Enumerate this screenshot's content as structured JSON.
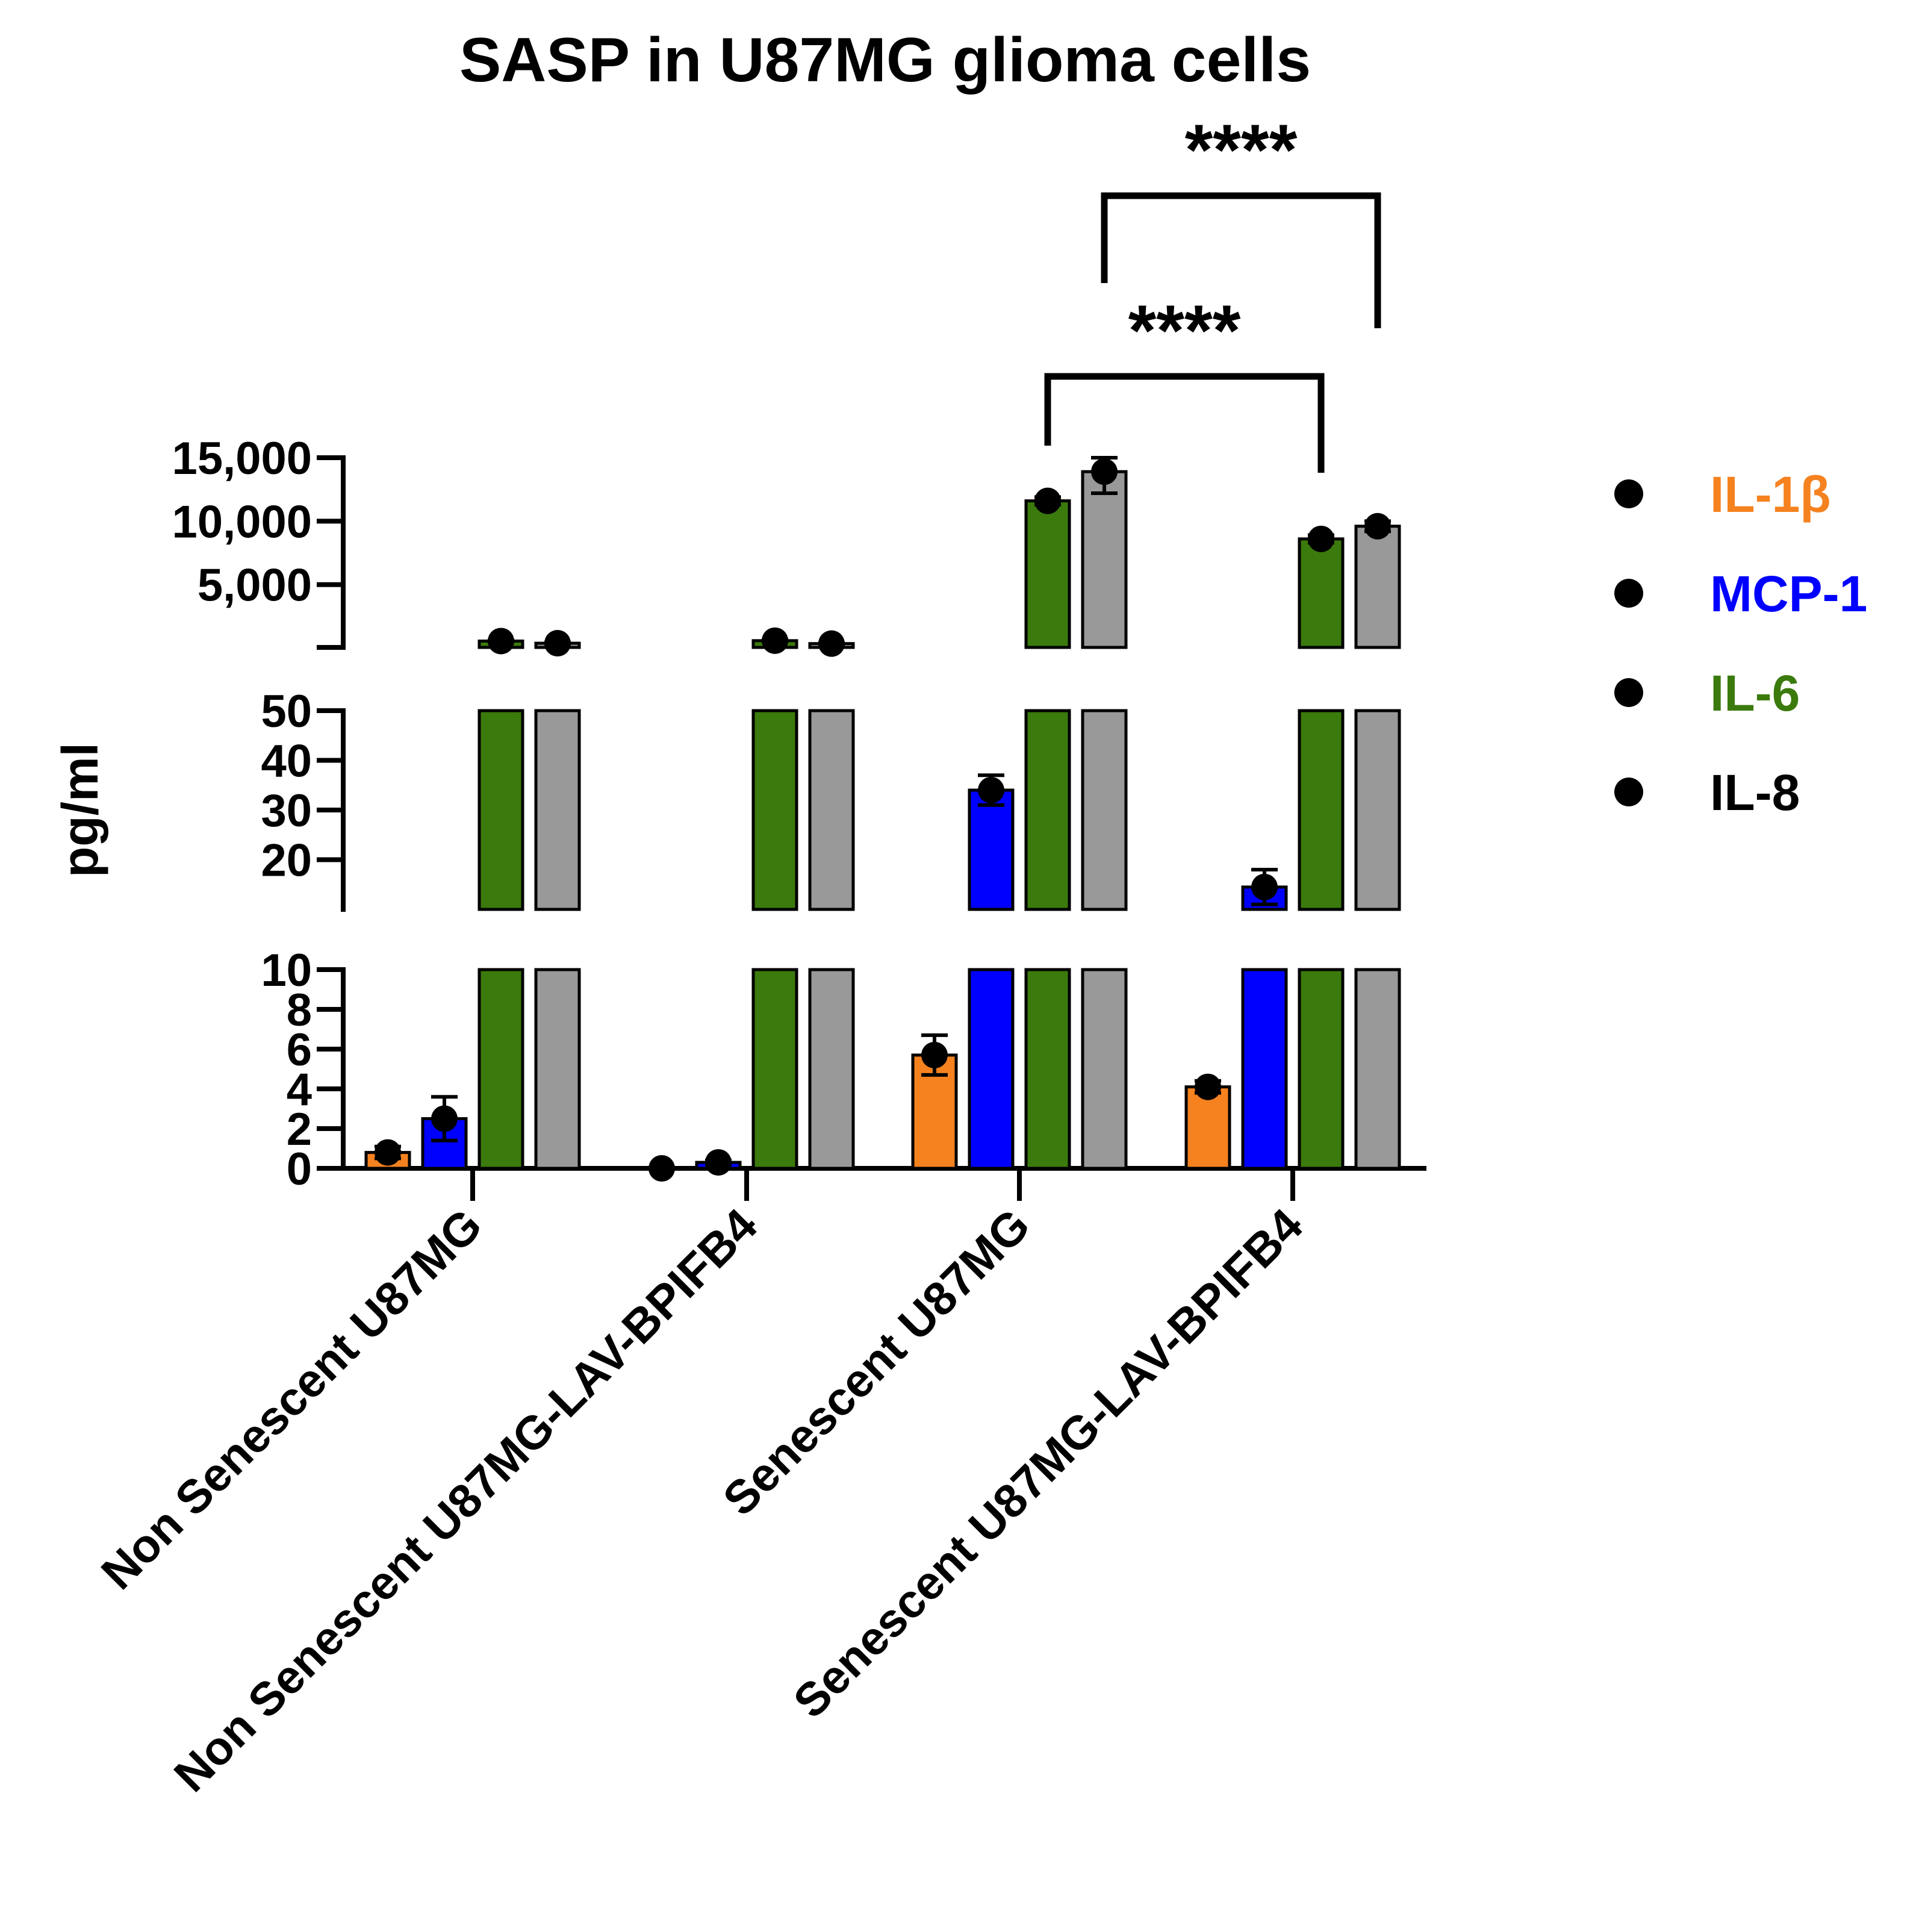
{
  "chart_data": {
    "type": "bar",
    "title": "SASP in U87MG glioma cells",
    "ylabel": "pg/ml",
    "xlabel": "",
    "categories": [
      "Non Senescent U87MG",
      "Non Senescent U87MG-LAV-BPIFB4",
      "Senescent U87MG",
      "Senescent U87MG-LAV-BPIFB4"
    ],
    "y_segments": [
      {
        "range": [
          0,
          10
        ],
        "ticks": [
          0,
          2,
          4,
          6,
          8,
          10
        ],
        "tick_labels": [
          "0",
          "2",
          "4",
          "6",
          "8",
          "10"
        ]
      },
      {
        "range": [
          10,
          50
        ],
        "ticks": [
          10,
          20,
          30,
          40,
          50
        ],
        "tick_labels": [
          "10",
          "20",
          "30",
          "40",
          "50"
        ]
      },
      {
        "range": [
          50,
          15000
        ],
        "ticks": [
          5000,
          10000,
          15000
        ],
        "tick_labels": [
          "5,000",
          "10,000",
          "15,000"
        ]
      }
    ],
    "series": [
      {
        "name": "IL-1β",
        "color": "#f5821f",
        "values": [
          0.8,
          0.0,
          5.7,
          4.1
        ],
        "errors": [
          0.3,
          0.0,
          1.0,
          0.3
        ]
      },
      {
        "name": "MCP-1",
        "color": "#0000ff",
        "values": [
          2.5,
          0.3,
          34,
          14.5
        ],
        "errors": [
          1.1,
          0.1,
          3.0,
          3.5
        ]
      },
      {
        "name": "IL-6",
        "color": "#3b7a0c",
        "values": [
          550,
          580,
          11600,
          8600
        ],
        "errors": [
          60,
          60,
          300,
          300
        ]
      },
      {
        "name": "IL-8",
        "color": "#999999",
        "values": [
          380,
          350,
          13900,
          9600
        ],
        "errors": [
          40,
          40,
          1700,
          400
        ]
      }
    ],
    "significance": [
      {
        "label": "****",
        "from_category": 2,
        "to_category": 3,
        "series": "IL-6"
      },
      {
        "label": "****",
        "from_category": 2,
        "to_category": 3,
        "series": "IL-8"
      }
    ],
    "legend_position": "right"
  }
}
